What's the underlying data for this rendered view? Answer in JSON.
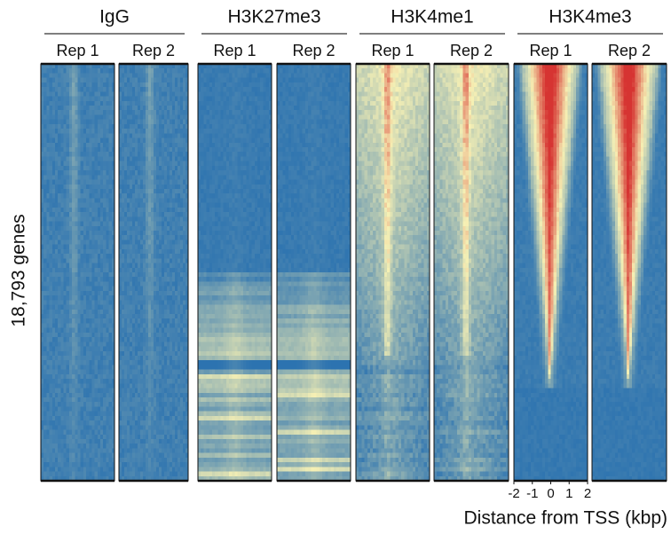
{
  "chart_data": {
    "type": "heatmap",
    "ylabel": "18,793 genes",
    "xlabel": "Distance from TSS (kbp)",
    "groups": [
      {
        "name": "IgG",
        "columns": [
          "Rep 1",
          "Rep 2"
        ]
      },
      {
        "name": "H3K27me3",
        "columns": [
          "Rep 1",
          "Rep 2"
        ]
      },
      {
        "name": "H3K4me1",
        "columns": [
          "Rep 1",
          "Rep 2"
        ]
      },
      {
        "name": "H3K4me3",
        "columns": [
          "Rep 1",
          "Rep 2"
        ]
      }
    ],
    "xlim": [
      -2,
      2
    ],
    "xticks": [
      -2,
      -1,
      0,
      1,
      2
    ]
  }
}
